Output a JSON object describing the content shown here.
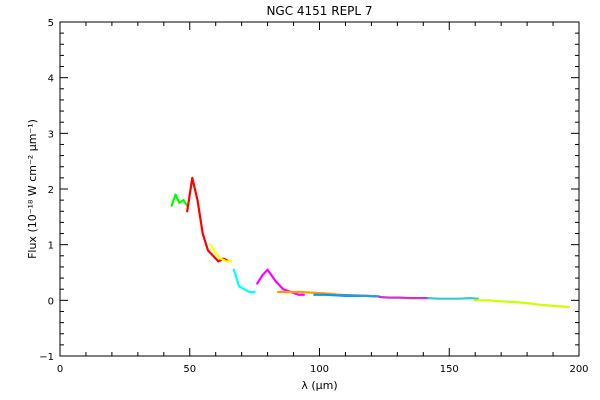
{
  "chart_data": {
    "type": "line",
    "title": "NGC 4151 REPL 7",
    "xlabel": "λ (μm)",
    "ylabel": "Flux (10⁻¹⁸ W cm⁻² μm⁻¹)",
    "xlim": [
      0,
      200
    ],
    "ylim": [
      -1,
      5
    ],
    "x_ticks": [
      0,
      50,
      100,
      150,
      200
    ],
    "y_ticks": [
      -1,
      0,
      1,
      2,
      3,
      4,
      5
    ],
    "x_tick_labels": [
      "0",
      "50",
      "100",
      "150",
      "200"
    ],
    "y_tick_labels": [
      "−1",
      "0",
      "1",
      "2",
      "3",
      "4",
      "5"
    ],
    "grid": false,
    "legend": "none",
    "series": [
      {
        "color": "#00ff00",
        "x": [
          43,
          44.5,
          46,
          47.5,
          49
        ],
        "y": [
          1.7,
          1.9,
          1.75,
          1.8,
          1.7
        ]
      },
      {
        "color": "#ff0000",
        "x": [
          49,
          51,
          53,
          55,
          57,
          59,
          61,
          63,
          65
        ],
        "y": [
          1.6,
          2.2,
          1.8,
          1.2,
          0.9,
          0.8,
          0.7,
          0.75,
          0.7
        ]
      },
      {
        "color": "#ffff00",
        "x": [
          58,
          60,
          62,
          64,
          66
        ],
        "y": [
          1.0,
          0.85,
          0.75,
          0.7,
          0.7
        ]
      },
      {
        "color": "#00ffff",
        "x": [
          67,
          69,
          71,
          73,
          75
        ],
        "y": [
          0.55,
          0.25,
          0.2,
          0.15,
          0.15
        ]
      },
      {
        "color": "#ff00ff",
        "x": [
          76,
          78,
          80,
          83,
          86,
          89,
          92,
          94
        ],
        "y": [
          0.3,
          0.45,
          0.55,
          0.35,
          0.2,
          0.15,
          0.1,
          0.1
        ]
      },
      {
        "color": "#ff9900",
        "x": [
          84,
          88,
          92,
          96,
          100,
          104,
          108
        ],
        "y": [
          0.15,
          0.15,
          0.15,
          0.14,
          0.13,
          0.12,
          0.1
        ]
      },
      {
        "color": "#0099ff",
        "x": [
          98,
          102,
          106,
          110,
          114,
          118,
          122
        ],
        "y": [
          0.1,
          0.1,
          0.09,
          0.08,
          0.08,
          0.08,
          0.07
        ]
      },
      {
        "color": "#3399cc",
        "x": [
          108,
          113,
          118,
          123
        ],
        "y": [
          0.1,
          0.09,
          0.08,
          0.07
        ]
      },
      {
        "color": "#cc33cc",
        "x": [
          123,
          127,
          131,
          135,
          139,
          142
        ],
        "y": [
          0.06,
          0.05,
          0.05,
          0.04,
          0.04,
          0.04
        ]
      },
      {
        "color": "#33cccc",
        "x": [
          142,
          146,
          150,
          154,
          158,
          161
        ],
        "y": [
          0.04,
          0.03,
          0.03,
          0.03,
          0.04,
          0.03
        ]
      },
      {
        "color": "#ccff00",
        "x": [
          160,
          165,
          170,
          175,
          180,
          185,
          190,
          196
        ],
        "y": [
          0.0,
          0.0,
          -0.02,
          -0.03,
          -0.05,
          -0.08,
          -0.1,
          -0.12
        ]
      }
    ]
  }
}
